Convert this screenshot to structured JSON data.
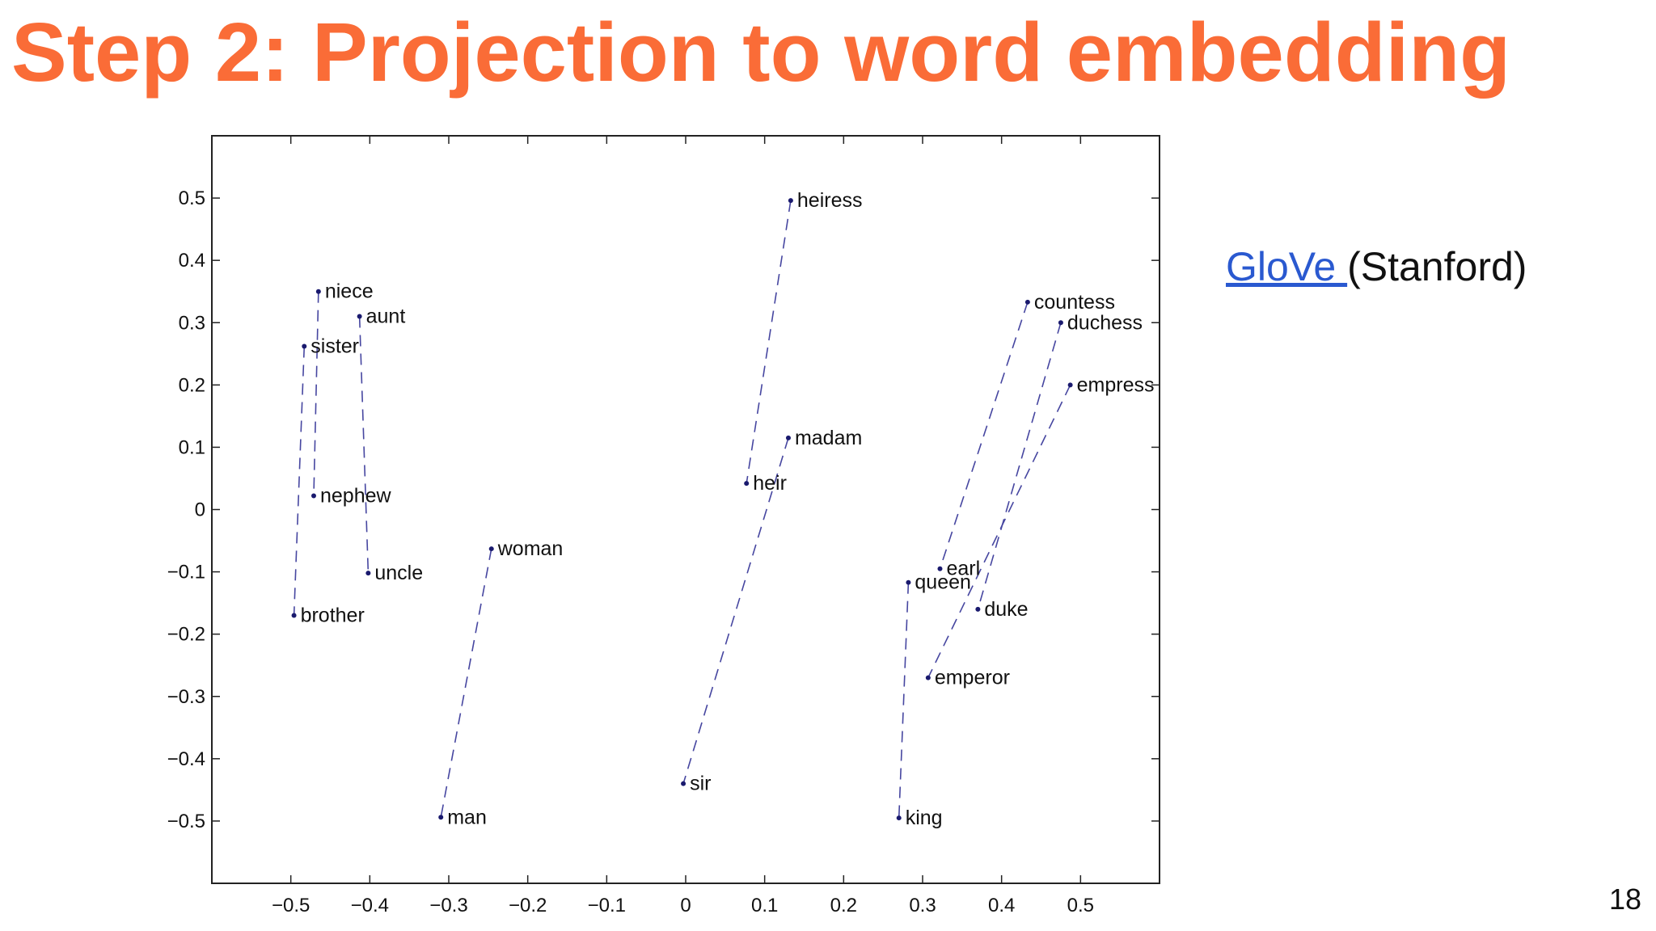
{
  "slide": {
    "title": "Step 2: Projection to word embedding",
    "page_number": "18",
    "side_note": {
      "link_text": "GloVe ",
      "suffix": "(Stanford)"
    }
  },
  "colors": {
    "title": "#fa6c37",
    "link": "#2a59d0",
    "points": "#1a1a6e",
    "lines": "#4646a0",
    "axes": "#222222"
  },
  "chart_data": {
    "type": "scatter",
    "title": "",
    "xlabel": "",
    "ylabel": "",
    "xlim": [
      -0.6,
      0.6
    ],
    "ylim": [
      -0.6,
      0.6
    ],
    "grid": false,
    "x_ticks": [
      -0.5,
      -0.4,
      -0.3,
      -0.2,
      -0.1,
      0,
      0.1,
      0.2,
      0.3,
      0.4,
      0.5
    ],
    "x_tick_labels": [
      "−0.5",
      "−0.4",
      "−0.3",
      "−0.2",
      "−0.1",
      "0",
      "0.1",
      "0.2",
      "0.3",
      "0.4",
      "0.5"
    ],
    "y_ticks": [
      0.5,
      0.4,
      0.3,
      0.2,
      0.1,
      0,
      -0.1,
      -0.2,
      -0.3,
      -0.4,
      -0.5
    ],
    "y_tick_labels": [
      "0.5",
      "0.4",
      "0.3",
      "0.2",
      "0.1",
      "0",
      "−0.1",
      "−0.2",
      "−0.3",
      "−0.4",
      "−0.5"
    ],
    "points": [
      {
        "label": "niece",
        "x": -0.465,
        "y": 0.35
      },
      {
        "label": "aunt",
        "x": -0.413,
        "y": 0.31
      },
      {
        "label": "sister",
        "x": -0.483,
        "y": 0.262
      },
      {
        "label": "nephew",
        "x": -0.471,
        "y": 0.022
      },
      {
        "label": "uncle",
        "x": -0.402,
        "y": -0.102
      },
      {
        "label": "brother",
        "x": -0.496,
        "y": -0.17
      },
      {
        "label": "woman",
        "x": -0.246,
        "y": -0.063
      },
      {
        "label": "man",
        "x": -0.31,
        "y": -0.494
      },
      {
        "label": "heiress",
        "x": 0.133,
        "y": 0.496
      },
      {
        "label": "madam",
        "x": 0.13,
        "y": 0.115
      },
      {
        "label": "heir",
        "x": 0.077,
        "y": 0.042
      },
      {
        "label": "sir",
        "x": -0.003,
        "y": -0.44
      },
      {
        "label": "countess",
        "x": 0.433,
        "y": 0.333
      },
      {
        "label": "duchess",
        "x": 0.475,
        "y": 0.3
      },
      {
        "label": "empress",
        "x": 0.487,
        "y": 0.2
      },
      {
        "label": "earl",
        "x": 0.322,
        "y": -0.095
      },
      {
        "label": "queen",
        "x": 0.282,
        "y": -0.117
      },
      {
        "label": "duke",
        "x": 0.37,
        "y": -0.16
      },
      {
        "label": "emperor",
        "x": 0.307,
        "y": -0.27
      },
      {
        "label": "king",
        "x": 0.27,
        "y": -0.495
      }
    ],
    "pairs": [
      [
        "niece",
        "nephew"
      ],
      [
        "aunt",
        "uncle"
      ],
      [
        "sister",
        "brother"
      ],
      [
        "woman",
        "man"
      ],
      [
        "heiress",
        "heir"
      ],
      [
        "madam",
        "sir"
      ],
      [
        "countess",
        "earl"
      ],
      [
        "duchess",
        "duke"
      ],
      [
        "empress",
        "emperor"
      ],
      [
        "queen",
        "king"
      ]
    ]
  }
}
